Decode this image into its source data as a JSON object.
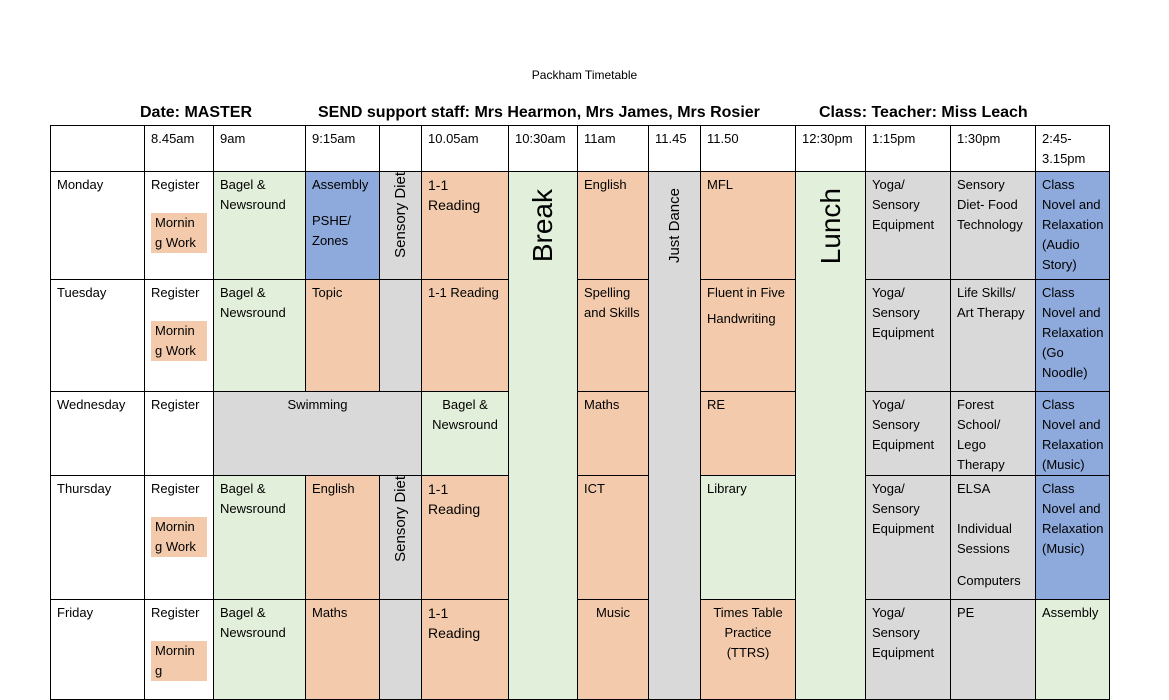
{
  "title": "Packham Timetable",
  "header": {
    "date": "Date: MASTER",
    "staff": "SEND support staff: Mrs Hearmon, Mrs James, Mrs Rosier",
    "class": "Class: Teacher: Miss Leach"
  },
  "times": [
    "8.45am",
    "9am",
    "9:15am",
    "10.05am",
    "10:30am",
    "11am",
    "11.45",
    "11.50",
    "12:30pm",
    "1:15pm",
    "1:30pm",
    "2:45-3.15pm"
  ],
  "merged": {
    "sensory_diet_top": "Sensory Diet",
    "sensory_diet_bottom": "Sensory Diet",
    "break": "Break",
    "just_dance": "Just Dance",
    "lunch": "Lunch",
    "swimming": "Swimming"
  },
  "days": {
    "monday": {
      "name": "Monday",
      "register": "Register",
      "morning_work": "Mornin g Work",
      "p9": "Bagel & Newsround",
      "p915a": "Assembly",
      "p915b": "PSHE/ Zones",
      "p1005": "1-1 Reading",
      "p11": "English",
      "p1150": "MFL",
      "p115": "Yoga/ Sensory Equipment",
      "p130": "Sensory Diet- Food Technology",
      "p245": "Class Novel and Relaxation (Audio Story)"
    },
    "tuesday": {
      "name": "Tuesday",
      "register": "Register",
      "morning_work": "Mornin g Work",
      "p9": "Bagel & Newsround",
      "p915": "Topic",
      "p1005": "1-1 Reading",
      "p11": "Spelling and Skills",
      "p1150a": "Fluent in Five",
      "p1150b": "Handwriting",
      "p115": "Yoga/ Sensory Equipment",
      "p130": "Life Skills/ Art Therapy",
      "p245": "Class Novel and Relaxation (Go Noodle)"
    },
    "wednesday": {
      "name": "Wednesday",
      "register": "Register",
      "p1005": "Bagel & Newsround",
      "p11": "Maths",
      "p1150": "RE",
      "p115": "Yoga/ Sensory Equipment",
      "p130": "Forest School/ Lego Therapy",
      "p245": "Class Novel and Relaxation (Music)"
    },
    "thursday": {
      "name": "Thursday",
      "register": "Register",
      "morning_work": "Mornin g Work",
      "p9": "Bagel & Newsround",
      "p915": "English",
      "p1005": "1-1 Reading",
      "p11": "ICT",
      "p1150": "Library",
      "p115": "Yoga/ Sensory Equipment",
      "p130a": "ELSA",
      "p130b": "Individual Sessions",
      "p130c": "Computers",
      "p245": "Class Novel and Relaxation (Music)"
    },
    "friday": {
      "name": "Friday",
      "register": "Register",
      "morning_work": "Mornin g",
      "p9": "Bagel & Newsround",
      "p915": "Maths",
      "p1005": "1-1 Reading",
      "p11": "Music",
      "p1150": "Times Table Practice (TTRS)",
      "p115": "Yoga/ Sensory Equipment",
      "p130": "PE",
      "p245": "Assembly"
    }
  },
  "colors": {
    "green": "#e2efda",
    "orange": "#f3cbac",
    "blue": "#8ea9db",
    "grey": "#d9d9d9"
  }
}
